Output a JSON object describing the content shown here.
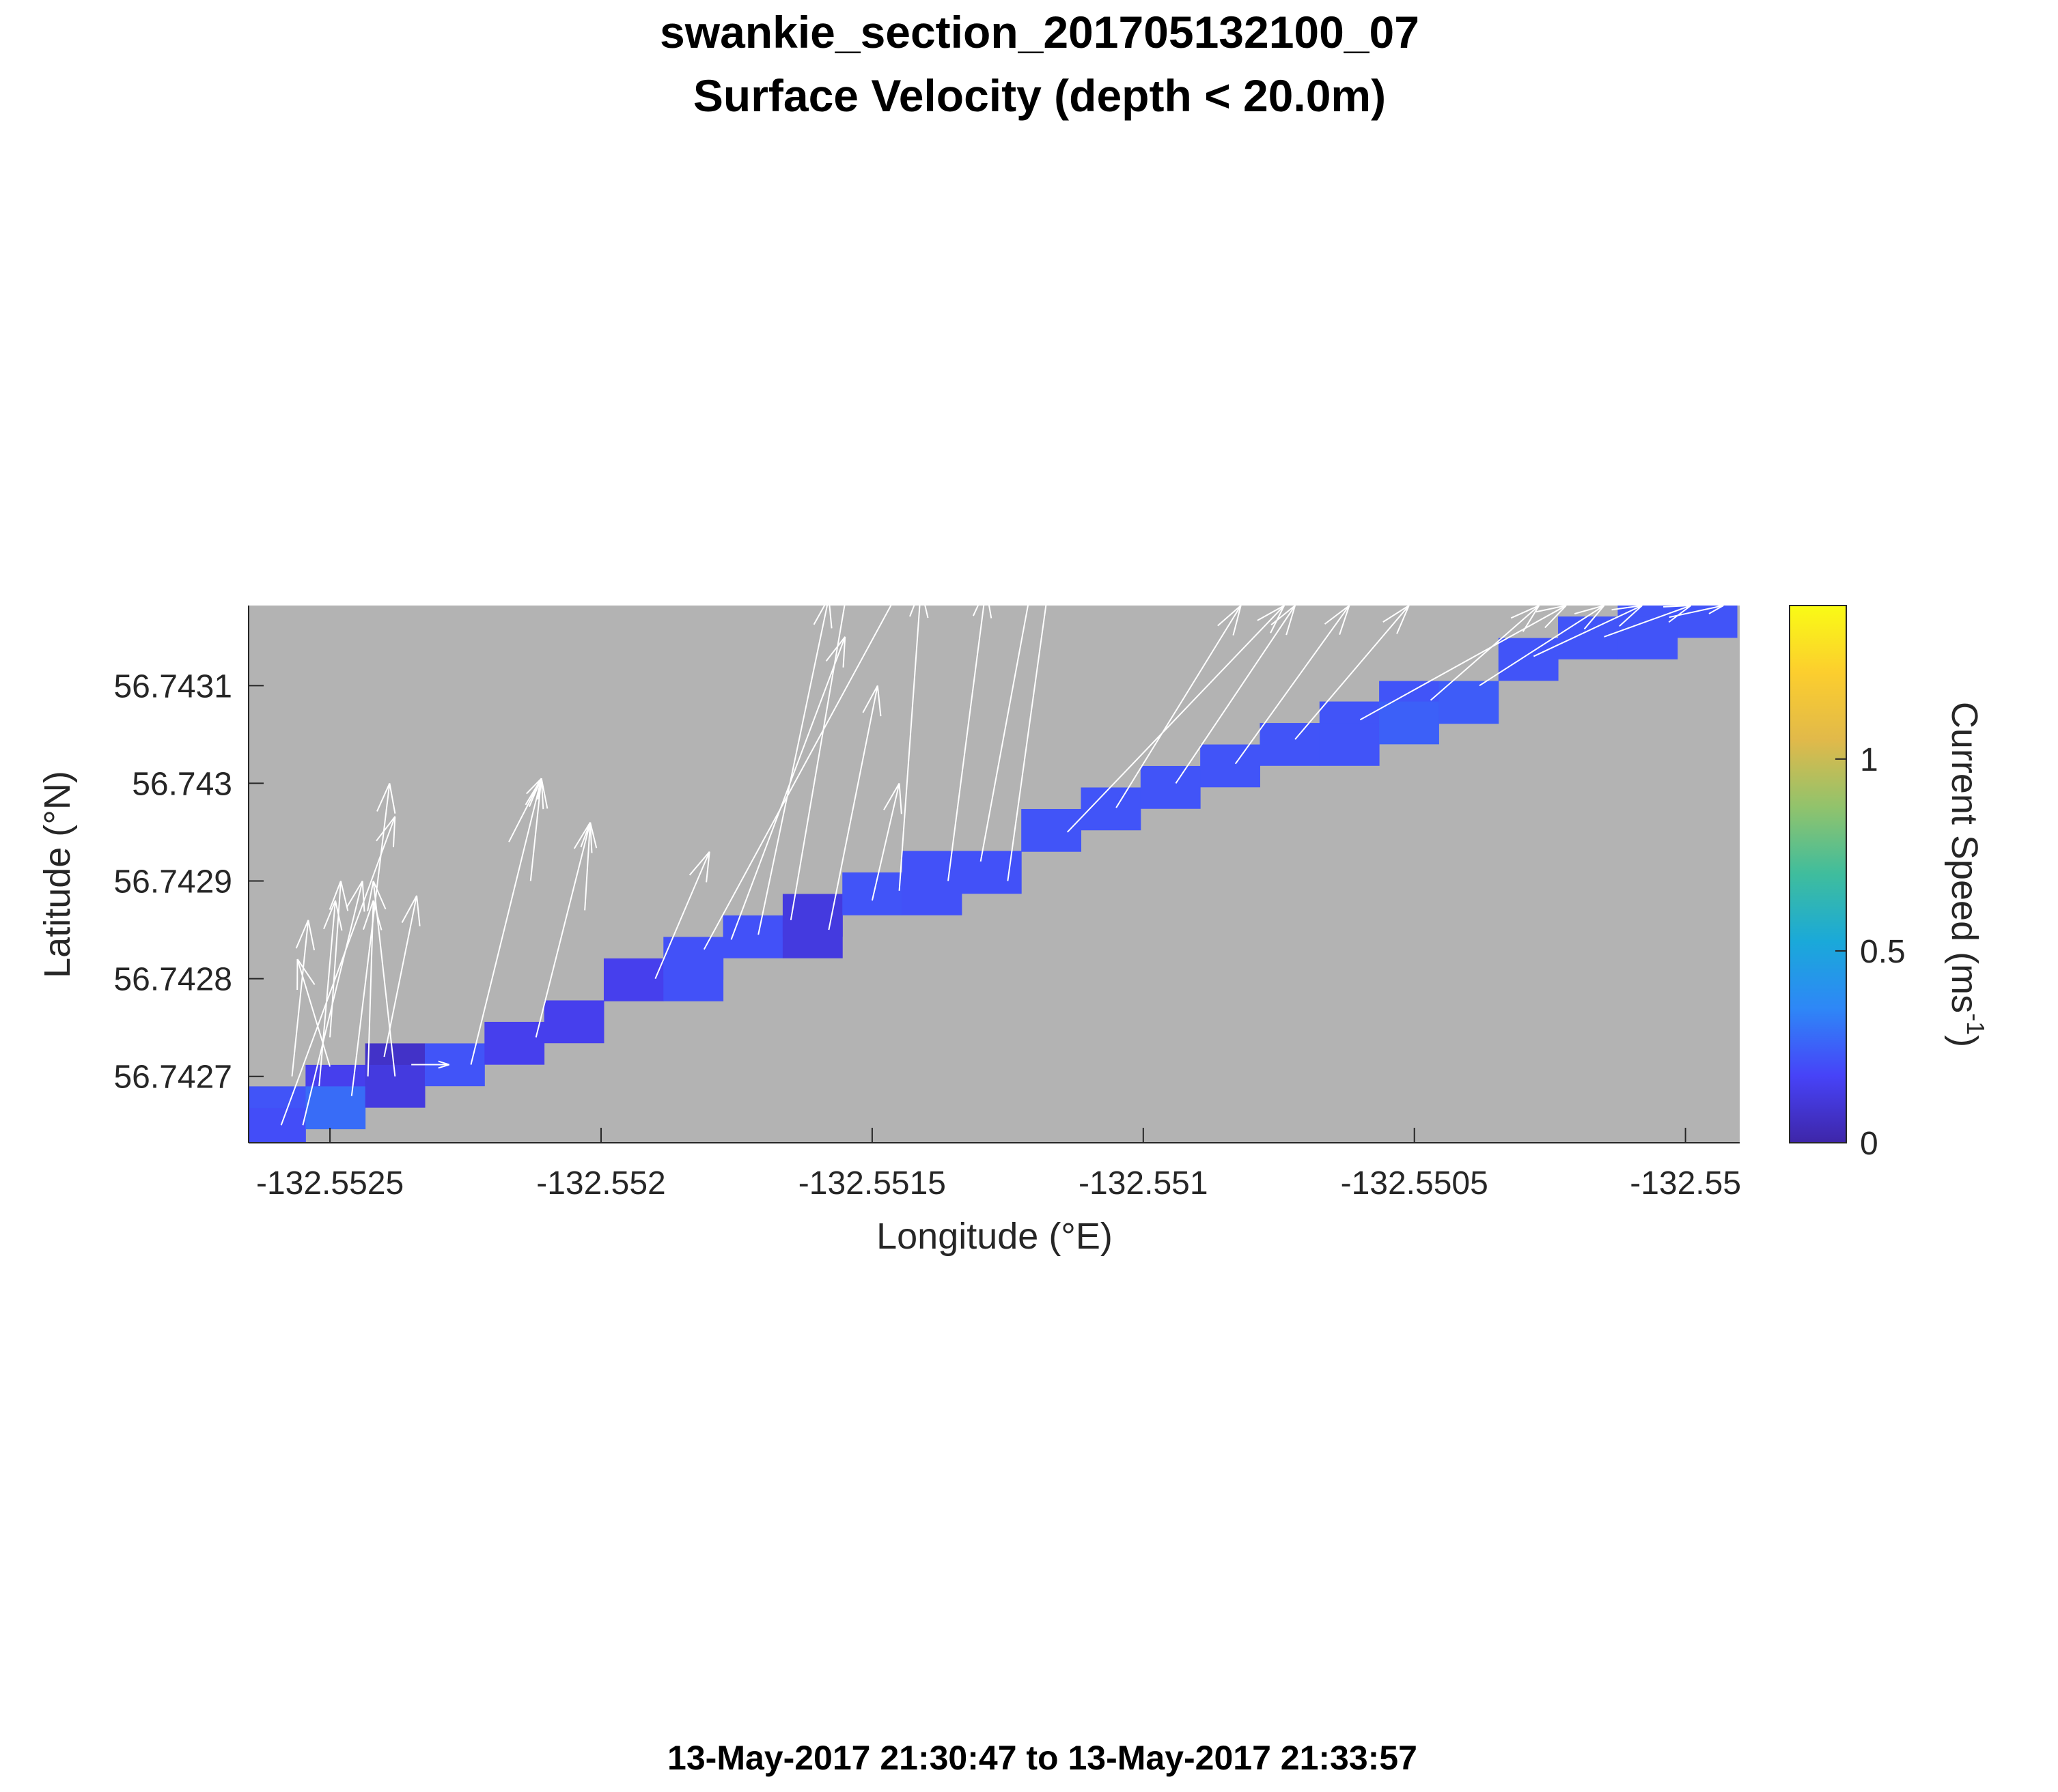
{
  "figure": {
    "title_line1": "swankie_section_201705132100_07",
    "title_line2": "Surface Velocity (depth < 20.0m)",
    "time_range": "13-May-2017 21:30:47 to 13-May-2017 21:33:57"
  },
  "chart_data": {
    "type": "heatmap",
    "title": "swankie_section_201705132100_07",
    "subtitle": "Surface Velocity (depth < 20.0m)",
    "xlabel": "Longitude (°E)",
    "ylabel": "Latitude (°N)",
    "xlim": [
      -132.55265,
      -132.5499
    ],
    "ylim": [
      56.742632,
      56.743182
    ],
    "x_ticks": [
      -132.5525,
      -132.552,
      -132.5515,
      -132.551,
      -132.5505,
      -132.55
    ],
    "x_tick_labels": [
      "-132.5525",
      "-132.552",
      "-132.5515",
      "-132.551",
      "-132.5505",
      "-132.55"
    ],
    "y_ticks": [
      56.7427,
      56.7428,
      56.7429,
      56.743,
      56.7431
    ],
    "y_tick_labels": [
      "56.7427",
      "56.7428",
      "56.7429",
      "56.743",
      "56.7431"
    ],
    "background_color": "#b3b3b3",
    "grid": false,
    "colorbar": {
      "label_main": "Current Speed (ms",
      "label_sup": "-1",
      "label_close": ")",
      "range": [
        0,
        1.4
      ],
      "ticks": [
        0,
        0.5,
        1
      ],
      "tick_labels": [
        "0",
        "0.5",
        "1"
      ],
      "colormap": [
        "#3e26a8",
        "#4743f8",
        "#2e87f7",
        "#1aa9d9",
        "#3fbd9d",
        "#91c36c",
        "#e1b94a",
        "#fcce2e",
        "#f9fb15"
      ]
    },
    "cell_size": {
      "dlon": 0.00011,
      "dlat": 4.35e-05
    },
    "cells": [
      {
        "lon": -132.5526,
        "lat": 56.742668,
        "speed": 0.22
      },
      {
        "lon": -132.5526,
        "lat": 56.742646,
        "speed": 0.2
      },
      {
        "lon": -132.55249,
        "lat": 56.74269,
        "speed": 0.15
      },
      {
        "lon": -132.55249,
        "lat": 56.742668,
        "speed": 0.28
      },
      {
        "lon": -132.55238,
        "lat": 56.742712,
        "speed": 0.07
      },
      {
        "lon": -132.55238,
        "lat": 56.74269,
        "speed": 0.12
      },
      {
        "lon": -132.55227,
        "lat": 56.742712,
        "speed": 0.22
      },
      {
        "lon": -132.55216,
        "lat": 56.742734,
        "speed": 0.15
      },
      {
        "lon": -132.55205,
        "lat": 56.742756,
        "speed": 0.15
      },
      {
        "lon": -132.55194,
        "lat": 56.742799,
        "speed": 0.15
      },
      {
        "lon": -132.55183,
        "lat": 56.742821,
        "speed": 0.21
      },
      {
        "lon": -132.55183,
        "lat": 56.742799,
        "speed": 0.21
      },
      {
        "lon": -132.55172,
        "lat": 56.742843,
        "speed": 0.21
      },
      {
        "lon": -132.55161,
        "lat": 56.742865,
        "speed": 0.12
      },
      {
        "lon": -132.55161,
        "lat": 56.742843,
        "speed": 0.12
      },
      {
        "lon": -132.5515,
        "lat": 56.742887,
        "speed": 0.22
      },
      {
        "lon": -132.55139,
        "lat": 56.742909,
        "speed": 0.21
      },
      {
        "lon": -132.55139,
        "lat": 56.742887,
        "speed": 0.21
      },
      {
        "lon": -132.55128,
        "lat": 56.742909,
        "speed": 0.21
      },
      {
        "lon": -132.55117,
        "lat": 56.742952,
        "speed": 0.22
      },
      {
        "lon": -132.55106,
        "lat": 56.742974,
        "speed": 0.22
      },
      {
        "lon": -132.55095,
        "lat": 56.742996,
        "speed": 0.22
      },
      {
        "lon": -132.55084,
        "lat": 56.743018,
        "speed": 0.22
      },
      {
        "lon": -132.55073,
        "lat": 56.74304,
        "speed": 0.22
      },
      {
        "lon": -132.55062,
        "lat": 56.743062,
        "speed": 0.22
      },
      {
        "lon": -132.55062,
        "lat": 56.74304,
        "speed": 0.22
      },
      {
        "lon": -132.55051,
        "lat": 56.743083,
        "speed": 0.22
      },
      {
        "lon": -132.55051,
        "lat": 56.743062,
        "speed": 0.25
      },
      {
        "lon": -132.5504,
        "lat": 56.743083,
        "speed": 0.24
      },
      {
        "lon": -132.55029,
        "lat": 56.743127,
        "speed": 0.22
      },
      {
        "lon": -132.55018,
        "lat": 56.743149,
        "speed": 0.22
      },
      {
        "lon": -132.55007,
        "lat": 56.743171,
        "speed": 0.22
      },
      {
        "lon": -132.55007,
        "lat": 56.743149,
        "speed": 0.22
      },
      {
        "lon": -132.54996,
        "lat": 56.743171,
        "speed": 0.22
      }
    ],
    "vectors_color": "#ffffff",
    "vectors": [
      {
        "lon": -132.55259,
        "lat": 56.74265,
        "lon2": -132.55238,
        "lat2": 56.742966
      },
      {
        "lon": -132.55257,
        "lat": 56.7427,
        "lon2": -132.55254,
        "lat2": 56.74286
      },
      {
        "lon": -132.55252,
        "lat": 56.74269,
        "lon2": -132.55249,
        "lat2": 56.74288
      },
      {
        "lon": -132.5525,
        "lat": 56.74271,
        "lon2": -132.55256,
        "lat2": 56.74282
      },
      {
        "lon": -132.55255,
        "lat": 56.74265,
        "lon2": -132.55244,
        "lat2": 56.7429
      },
      {
        "lon": -132.5525,
        "lat": 56.74274,
        "lon2": -132.55248,
        "lat2": 56.7429
      },
      {
        "lon": -132.55246,
        "lat": 56.74268,
        "lon2": -132.55239,
        "lat2": 56.743
      },
      {
        "lon": -132.55243,
        "lat": 56.7427,
        "lon2": -132.55242,
        "lat2": 56.74288
      },
      {
        "lon": -132.55238,
        "lat": 56.7427,
        "lon2": -132.55242,
        "lat2": 56.7429
      },
      {
        "lon": -132.5524,
        "lat": 56.74272,
        "lon2": -132.55234,
        "lat2": 56.742885
      },
      {
        "lon": -132.55235,
        "lat": 56.742712,
        "lon2": -132.55228,
        "lat2": 56.742712
      },
      {
        "lon": -132.55224,
        "lat": 56.742712,
        "lon2": -132.55211,
        "lat2": 56.743005
      },
      {
        "lon": -132.55217,
        "lat": 56.74294,
        "lon2": -132.55211,
        "lat2": 56.743005
      },
      {
        "lon": -132.55213,
        "lat": 56.7429,
        "lon2": -132.55211,
        "lat2": 56.743005
      },
      {
        "lon": -132.55212,
        "lat": 56.74274,
        "lon2": -132.55202,
        "lat2": 56.74296
      },
      {
        "lon": -132.55203,
        "lat": 56.74287,
        "lon2": -132.55202,
        "lat2": 56.74296
      },
      {
        "lon": -132.5519,
        "lat": 56.7428,
        "lon2": -132.5518,
        "lat2": 56.74293
      },
      {
        "lon": -132.55181,
        "lat": 56.74283,
        "lon2": -132.55135,
        "lat2": 56.7433
      },
      {
        "lon": -132.55176,
        "lat": 56.74284,
        "lon2": -132.55155,
        "lat2": 56.74315
      },
      {
        "lon": -132.55171,
        "lat": 56.742845,
        "lon2": -132.55158,
        "lat2": 56.74319
      },
      {
        "lon": -132.55165,
        "lat": 56.74286,
        "lon2": -132.55153,
        "lat2": 56.74325
      },
      {
        "lon": -132.55158,
        "lat": 56.74285,
        "lon2": -132.55149,
        "lat2": 56.7431
      },
      {
        "lon": -132.5515,
        "lat": 56.74288,
        "lon2": -132.55145,
        "lat2": 56.743
      },
      {
        "lon": -132.55145,
        "lat": 56.74289,
        "lon2": -132.55141,
        "lat2": 56.7432
      },
      {
        "lon": -132.55136,
        "lat": 56.7429,
        "lon2": -132.55129,
        "lat2": 56.7432
      },
      {
        "lon": -132.5513,
        "lat": 56.74292,
        "lon2": -132.55119,
        "lat2": 56.74325
      },
      {
        "lon": -132.55125,
        "lat": 56.7429,
        "lon2": -132.55115,
        "lat2": 56.7433
      },
      {
        "lon": -132.55114,
        "lat": 56.74295,
        "lon2": -132.55074,
        "lat2": 56.743182
      },
      {
        "lon": -132.55105,
        "lat": 56.742975,
        "lon2": -132.55082,
        "lat2": 56.743182
      },
      {
        "lon": -132.55094,
        "lat": 56.743,
        "lon2": -132.55072,
        "lat2": 56.743182
      },
      {
        "lon": -132.55083,
        "lat": 56.74302,
        "lon2": -132.55062,
        "lat2": 56.743182
      },
      {
        "lon": -132.55072,
        "lat": 56.743045,
        "lon2": -132.55051,
        "lat2": 56.743182
      },
      {
        "lon": -132.5506,
        "lat": 56.743065,
        "lon2": -132.55022,
        "lat2": 56.743182
      },
      {
        "lon": -132.55047,
        "lat": 56.743085,
        "lon2": -132.55027,
        "lat2": 56.743182
      },
      {
        "lon": -132.55038,
        "lat": 56.7431,
        "lon2": -132.55015,
        "lat2": 56.743182
      },
      {
        "lon": -132.55028,
        "lat": 56.74313,
        "lon2": -132.55008,
        "lat2": 56.743182
      },
      {
        "lon": -132.55015,
        "lat": 56.74315,
        "lon2": -132.54999,
        "lat2": 56.743182
      },
      {
        "lon": -132.55003,
        "lat": 56.74317,
        "lon2": -132.54993,
        "lat2": 56.743182
      }
    ]
  }
}
